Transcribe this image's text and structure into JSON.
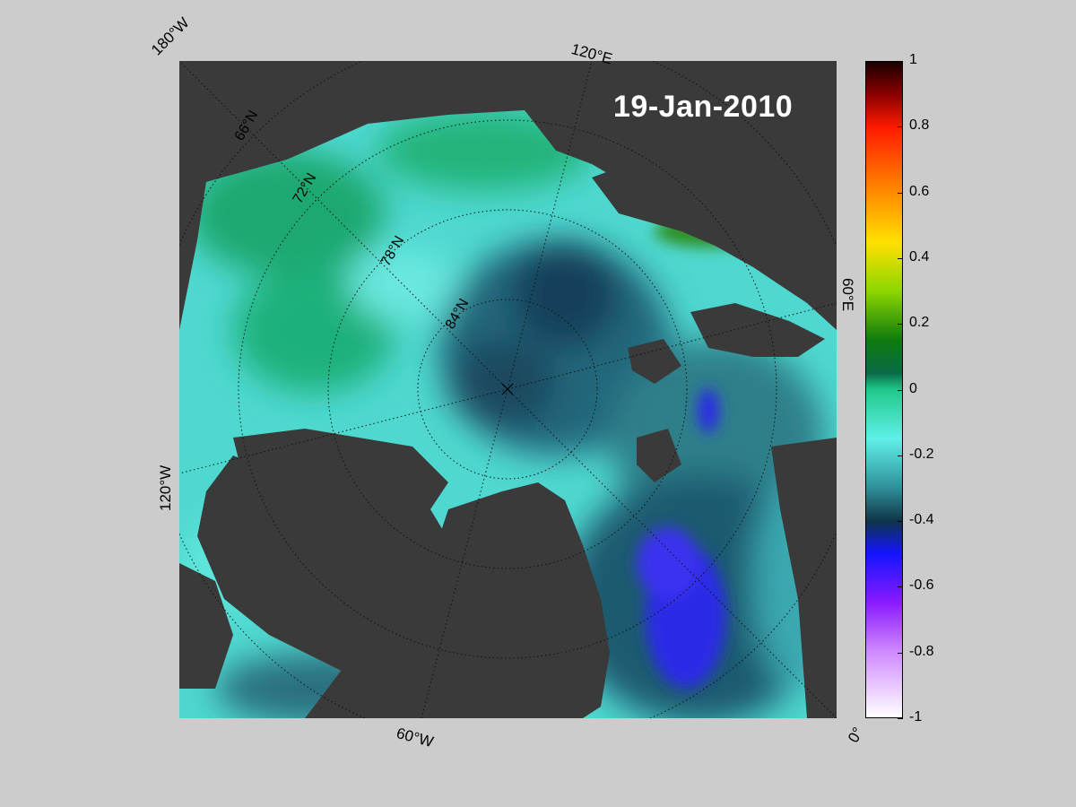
{
  "map": {
    "date": "19-Jan-2010",
    "longitude_labels": {
      "lon_180w": "180°W",
      "lon_120e": "120°E",
      "lon_60e": "60°E",
      "lon_120w": "120°W",
      "lon_60w": "60°W",
      "lon_0": "0°"
    },
    "latitude_labels": [
      "66°N",
      "72°N",
      "78°N",
      "84°N"
    ],
    "projection": "north-polar-stereographic",
    "colors": {
      "land": "#3a3a3a",
      "coast_fringe": "#8a8a8a",
      "background": "#cccccc"
    }
  },
  "colorbar": {
    "min": -1,
    "max": 1,
    "ticks": [
      "1",
      "0.8",
      "0.6",
      "0.4",
      "0.2",
      "0",
      "-0.2",
      "-0.4",
      "-0.6",
      "-0.8",
      "-1"
    ],
    "tick_values": [
      1,
      0.8,
      0.6,
      0.4,
      0.2,
      0,
      -0.2,
      -0.4,
      -0.6,
      -0.8,
      -1
    ],
    "stops": [
      {
        "value": 1,
        "color": "#1a0000"
      },
      {
        "value": 0.9,
        "color": "#8b0000"
      },
      {
        "value": 0.8,
        "color": "#ff1a00"
      },
      {
        "value": 0.6,
        "color": "#ff8c00"
      },
      {
        "value": 0.45,
        "color": "#ffe000"
      },
      {
        "value": 0.3,
        "color": "#8cd600"
      },
      {
        "value": 0.15,
        "color": "#0f7a0f"
      },
      {
        "value": 0.05,
        "color": "#0a6a46"
      },
      {
        "value": 0,
        "color": "#1fc98a"
      },
      {
        "value": -0.15,
        "color": "#5ff0e8"
      },
      {
        "value": -0.3,
        "color": "#2f8f98"
      },
      {
        "value": -0.4,
        "color": "#0f3547"
      },
      {
        "value": -0.5,
        "color": "#1414ff"
      },
      {
        "value": -0.65,
        "color": "#8a1aff"
      },
      {
        "value": -0.8,
        "color": "#d08aff"
      },
      {
        "value": -1,
        "color": "#ffffff"
      }
    ]
  }
}
